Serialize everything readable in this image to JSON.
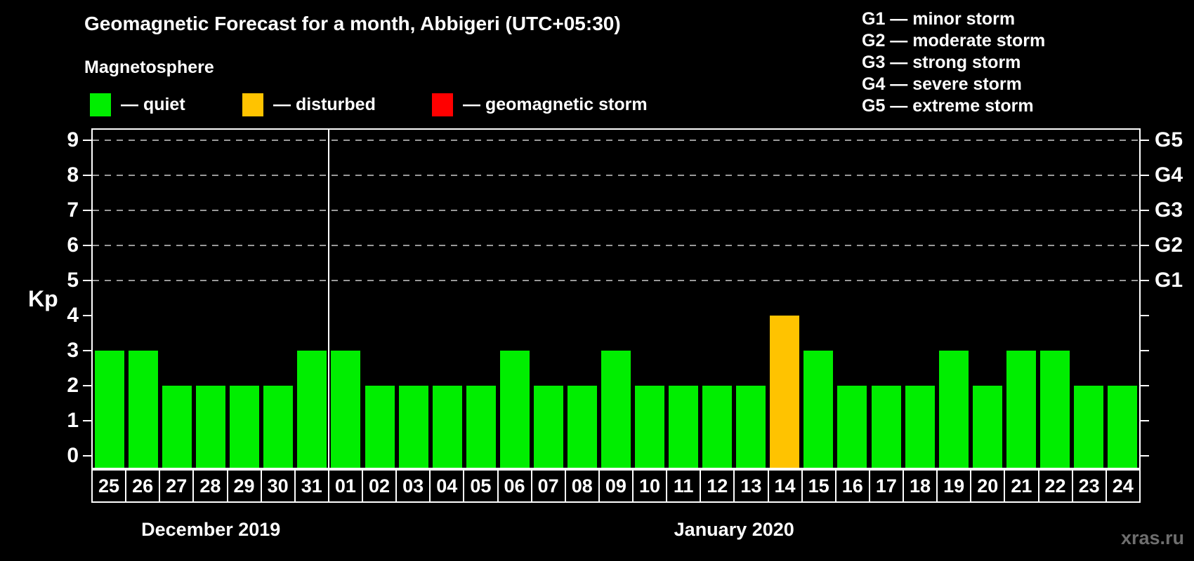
{
  "title": "Geomagnetic Forecast for a month, Abbigeri (UTC+05:30)",
  "subtitle": "Magnetosphere",
  "legend": {
    "items": [
      {
        "name": "quiet",
        "label": "— quiet",
        "color": "#00ee00"
      },
      {
        "name": "disturbed",
        "label": "— disturbed",
        "color": "#ffc300"
      },
      {
        "name": "storm",
        "label": "— geomagnetic storm",
        "color": "#ff0000"
      }
    ]
  },
  "storm_legend": {
    "items": [
      {
        "code": "G1",
        "label": "G1 — minor storm"
      },
      {
        "code": "G2",
        "label": "G2 — moderate storm"
      },
      {
        "code": "G3",
        "label": "G3 — strong storm"
      },
      {
        "code": "G4",
        "label": "G4 — severe storm"
      },
      {
        "code": "G5",
        "label": "G5 — extreme storm"
      }
    ]
  },
  "watermark": "xras.ru",
  "chart_data": {
    "type": "bar",
    "ylabel": "Kp",
    "ylim": [
      0,
      9
    ],
    "yticks": [
      0,
      1,
      2,
      3,
      4,
      5,
      6,
      7,
      8,
      9
    ],
    "gridline_levels": [
      5,
      6,
      7,
      8,
      9
    ],
    "right_axis_labels": [
      {
        "level": 5,
        "label": "G1"
      },
      {
        "level": 6,
        "label": "G2"
      },
      {
        "level": 7,
        "label": "G3"
      },
      {
        "level": 8,
        "label": "G4"
      },
      {
        "level": 9,
        "label": "G5"
      }
    ],
    "months": [
      {
        "label": "December 2019",
        "days": 7
      },
      {
        "label": "January 2020",
        "days": 24
      }
    ],
    "categories": [
      "25",
      "26",
      "27",
      "28",
      "29",
      "30",
      "31",
      "01",
      "02",
      "03",
      "04",
      "05",
      "06",
      "07",
      "08",
      "09",
      "10",
      "11",
      "12",
      "13",
      "14",
      "15",
      "16",
      "17",
      "18",
      "19",
      "20",
      "21",
      "22",
      "23",
      "24"
    ],
    "values": [
      3,
      3,
      2,
      2,
      2,
      2,
      3,
      3,
      2,
      2,
      2,
      2,
      3,
      2,
      2,
      3,
      2,
      2,
      2,
      2,
      4,
      3,
      2,
      2,
      2,
      3,
      2,
      3,
      3,
      2,
      2
    ],
    "statuses": [
      "quiet",
      "quiet",
      "quiet",
      "quiet",
      "quiet",
      "quiet",
      "quiet",
      "quiet",
      "quiet",
      "quiet",
      "quiet",
      "quiet",
      "quiet",
      "quiet",
      "quiet",
      "quiet",
      "quiet",
      "quiet",
      "quiet",
      "quiet",
      "disturbed",
      "quiet",
      "quiet",
      "quiet",
      "quiet",
      "quiet",
      "quiet",
      "quiet",
      "quiet",
      "quiet",
      "quiet"
    ],
    "status_colors": {
      "quiet": "#00ee00",
      "disturbed": "#ffc300",
      "storm": "#ff0000"
    },
    "grid_color": "#999999",
    "axis_color": "#ffffff",
    "background": "#000000"
  }
}
